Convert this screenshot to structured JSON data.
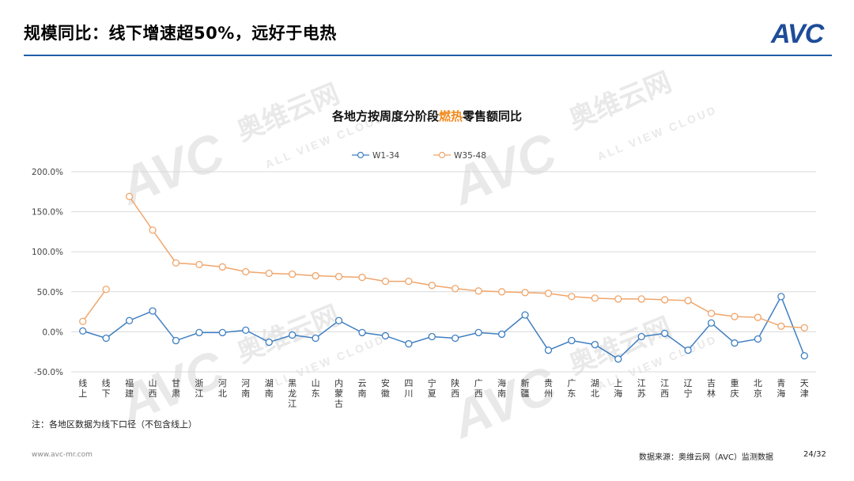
{
  "header": {
    "title": "规模同比：线下增速超50%，远好于电热",
    "logo_main": "AVC",
    "logo_dot": "●"
  },
  "watermark": {
    "brand": "AVC",
    "cn": "奥维云网",
    "en": "ALL VIEW CLOUD"
  },
  "chart_data": {
    "type": "line",
    "title_parts": [
      {
        "text": "各地方按周度分阶段",
        "highlight": false
      },
      {
        "text": "燃热",
        "highlight": true
      },
      {
        "text": "零售额同比",
        "highlight": false
      }
    ],
    "highlight_color": "#f28a1e",
    "categories": [
      "线上",
      "线下",
      "福建",
      "山西",
      "甘肃",
      "浙江",
      "河北",
      "河南",
      "湖南",
      "黑龙江",
      "山东",
      "内蒙古",
      "云南",
      "安徽",
      "四川",
      "宁夏",
      "陕西",
      "广西",
      "海南",
      "新疆",
      "贵州",
      "广东",
      "湖北",
      "上海",
      "江苏",
      "江西",
      "辽宁",
      "吉林",
      "重庆",
      "北京",
      "青海",
      "天津"
    ],
    "y_ticks": [
      "200.0%",
      "150.0%",
      "100.0%",
      "50.0%",
      "0.0%",
      "-50.0%"
    ],
    "ylim": [
      -50,
      200
    ],
    "grid": true,
    "legend_position": "top-center",
    "series": [
      {
        "name": "W1-34",
        "color": "#3f7fc1",
        "values": [
          1,
          -8,
          14,
          26,
          -11,
          -1,
          -1,
          2,
          -13,
          -4,
          -8,
          14,
          -1,
          -5,
          -15,
          -6,
          -8,
          -1,
          -3,
          21,
          -23,
          -11,
          -16,
          -34,
          -6,
          -2,
          -23,
          11,
          -14,
          -9,
          44,
          -30
        ]
      },
      {
        "name": "W35-48",
        "color": "#f0a56a",
        "values": [
          13,
          53,
          null,
          null,
          null,
          null,
          null,
          null,
          null,
          null,
          null,
          null,
          null,
          null,
          null,
          null,
          null,
          null,
          null,
          null,
          null,
          null,
          null,
          null,
          null,
          null,
          null,
          null,
          null,
          null,
          null,
          null
        ],
        "values_segment2": [
          null,
          null,
          169,
          127,
          86,
          84,
          81,
          75,
          73,
          72,
          70,
          69,
          68,
          63,
          63,
          58,
          54,
          51,
          50,
          49,
          48,
          44,
          42,
          41,
          41,
          40,
          39,
          23,
          19,
          18,
          7,
          5
        ]
      }
    ]
  },
  "footer": {
    "note": "注：各地区数据为线下口径（不包含线上）",
    "website": "www.avc-mr.com",
    "source": "数据来源：奥维云网（AVC）监测数据",
    "page": "24/32"
  }
}
